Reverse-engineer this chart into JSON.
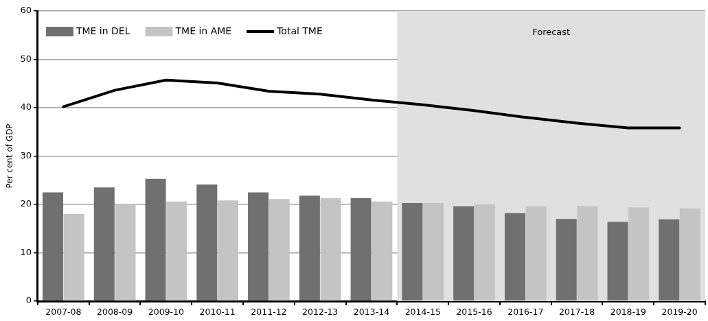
{
  "chart_data": {
    "type": "bar",
    "ylabel": "Per cent of GDP",
    "categories": [
      "2007-08",
      "2008-09",
      "2009-10",
      "2010-11",
      "2011-12",
      "2012-13",
      "2013-14",
      "2014-15",
      "2015-16",
      "2016-17",
      "2017-18",
      "2018-19",
      "2019-20"
    ],
    "series": [
      {
        "name": "TME in DEL",
        "color": "#707070",
        "values": [
          22.5,
          23.5,
          25.3,
          24.1,
          22.5,
          21.8,
          21.3,
          20.3,
          19.6,
          18.2,
          17.0,
          16.4,
          16.9
        ]
      },
      {
        "name": "TME in AME",
        "color": "#c4c4c4",
        "values": [
          18.0,
          20.1,
          20.6,
          20.8,
          21.1,
          21.3,
          20.6,
          20.3,
          20.0,
          19.6,
          19.6,
          19.4,
          19.2
        ]
      },
      {
        "name": "Total TME",
        "type": "line",
        "color": "#000000",
        "values": [
          40.2,
          43.6,
          45.7,
          45.1,
          43.4,
          42.8,
          41.6,
          40.6,
          39.4,
          38.0,
          36.8,
          35.8,
          35.8
        ]
      }
    ],
    "ylim": [
      0,
      60
    ],
    "yticks": [
      0,
      10,
      20,
      30,
      40,
      50,
      60
    ],
    "grid": "y",
    "legend": "top left",
    "marker": "none",
    "bands": [
      {
        "axis": "x",
        "from": "2014-15",
        "to": "2019-20",
        "label": "Forecast",
        "color": "#e0e0e0"
      }
    ]
  }
}
